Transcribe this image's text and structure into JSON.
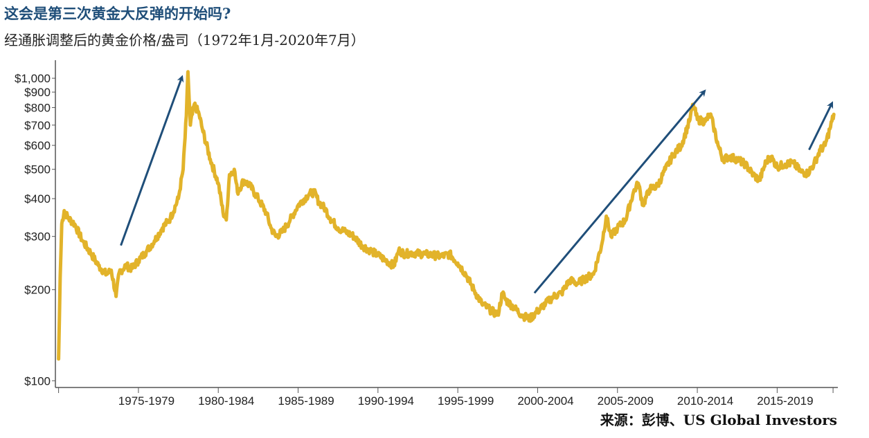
{
  "title": "这会是第三次黄金大反弹的开始吗?",
  "subtitle": "经通胀调整后的黄金价格/盎司（1972年1月-2020年7月）",
  "source": "来源：彭博、US Global Investors",
  "colors": {
    "line": "#e2b32a",
    "arrow": "#1f4e79",
    "axis": "#555555",
    "title": "#1f4e79"
  },
  "chart_data": {
    "type": "line",
    "title": "经通胀调整后的黄金价格/盎司（1972年1月-2020年7月）",
    "y_scale": "log",
    "ylim": [
      95,
      1100
    ],
    "xlim": [
      1971.8,
      2020.8
    ],
    "y_ticks": [
      {
        "value": 100,
        "label": "$100"
      },
      {
        "value": 200,
        "label": "$200"
      },
      {
        "value": 300,
        "label": "$300"
      },
      {
        "value": 400,
        "label": "$400"
      },
      {
        "value": 500,
        "label": "$500"
      },
      {
        "value": 600,
        "label": "$600"
      },
      {
        "value": 700,
        "label": "$700"
      },
      {
        "value": 800,
        "label": "$800"
      },
      {
        "value": 900,
        "label": "$900"
      },
      {
        "value": 1000,
        "label": "$1,000"
      }
    ],
    "x_ticks": [
      {
        "label": "1975-1979",
        "center": 1977.5
      },
      {
        "label": "1980-1984",
        "center": 1982.5
      },
      {
        "label": "1985-1989",
        "center": 1987.5
      },
      {
        "label": "1990-1994",
        "center": 1992.5
      },
      {
        "label": "1995-1999",
        "center": 1997.5
      },
      {
        "label": "2000-2004",
        "center": 2002.5
      },
      {
        "label": "2005-2009",
        "center": 2007.5
      },
      {
        "label": "2010-2014",
        "center": 2012.5
      },
      {
        "label": "2015-2019",
        "center": 2017.5
      }
    ],
    "x_tick_marks": [
      1972,
      1977,
      1982,
      1987,
      1992,
      1997,
      2002,
      2007,
      2012,
      2017,
      2020.5
    ],
    "series": [
      {
        "name": "经通胀调整后的黄金价格",
        "points": [
          [
            1972.0,
            118
          ],
          [
            1972.1,
            220
          ],
          [
            1972.2,
            330
          ],
          [
            1972.35,
            365
          ],
          [
            1972.6,
            345
          ],
          [
            1973.0,
            330
          ],
          [
            1973.5,
            290
          ],
          [
            1974.0,
            265
          ],
          [
            1974.5,
            240
          ],
          [
            1975.0,
            225
          ],
          [
            1975.3,
            232
          ],
          [
            1975.6,
            190
          ],
          [
            1975.8,
            228
          ],
          [
            1976.2,
            240
          ],
          [
            1976.6,
            235
          ],
          [
            1977.0,
            250
          ],
          [
            1977.5,
            268
          ],
          [
            1978.0,
            290
          ],
          [
            1978.5,
            320
          ],
          [
            1979.0,
            345
          ],
          [
            1979.5,
            400
          ],
          [
            1979.8,
            500
          ],
          [
            1980.0,
            750
          ],
          [
            1980.1,
            1050
          ],
          [
            1980.25,
            700
          ],
          [
            1980.5,
            820
          ],
          [
            1980.8,
            760
          ],
          [
            1981.0,
            680
          ],
          [
            1981.5,
            540
          ],
          [
            1982.0,
            450
          ],
          [
            1982.3,
            360
          ],
          [
            1982.5,
            340
          ],
          [
            1982.7,
            480
          ],
          [
            1983.0,
            500
          ],
          [
            1983.2,
            420
          ],
          [
            1983.6,
            460
          ],
          [
            1984.0,
            440
          ],
          [
            1984.5,
            400
          ],
          [
            1985.0,
            360
          ],
          [
            1985.3,
            320
          ],
          [
            1985.6,
            300
          ],
          [
            1986.0,
            310
          ],
          [
            1986.5,
            340
          ],
          [
            1987.0,
            380
          ],
          [
            1987.3,
            395
          ],
          [
            1987.7,
            415
          ],
          [
            1988.0,
            420
          ],
          [
            1988.3,
            390
          ],
          [
            1988.7,
            370
          ],
          [
            1989.0,
            345
          ],
          [
            1989.5,
            320
          ],
          [
            1990.0,
            310
          ],
          [
            1990.5,
            300
          ],
          [
            1991.0,
            280
          ],
          [
            1991.5,
            270
          ],
          [
            1992.0,
            260
          ],
          [
            1992.5,
            250
          ],
          [
            1993.0,
            240
          ],
          [
            1993.3,
            270
          ],
          [
            1993.7,
            262
          ],
          [
            1994.0,
            265
          ],
          [
            1995.0,
            262
          ],
          [
            1996.0,
            258
          ],
          [
            1996.5,
            262
          ],
          [
            1997.0,
            245
          ],
          [
            1997.5,
            225
          ],
          [
            1998.0,
            200
          ],
          [
            1998.5,
            180
          ],
          [
            1999.0,
            172
          ],
          [
            1999.5,
            165
          ],
          [
            1999.8,
            195
          ],
          [
            2000.0,
            185
          ],
          [
            2000.5,
            175
          ],
          [
            2001.0,
            165
          ],
          [
            2001.5,
            160
          ],
          [
            2002.0,
            170
          ],
          [
            2002.5,
            180
          ],
          [
            2003.0,
            190
          ],
          [
            2003.5,
            195
          ],
          [
            2004.0,
            215
          ],
          [
            2004.5,
            210
          ],
          [
            2005.0,
            218
          ],
          [
            2005.5,
            225
          ],
          [
            2006.0,
            280
          ],
          [
            2006.3,
            350
          ],
          [
            2006.6,
            300
          ],
          [
            2007.0,
            320
          ],
          [
            2007.5,
            340
          ],
          [
            2008.0,
            420
          ],
          [
            2008.3,
            450
          ],
          [
            2008.6,
            380
          ],
          [
            2009.0,
            430
          ],
          [
            2009.5,
            440
          ],
          [
            2010.0,
            500
          ],
          [
            2010.5,
            560
          ],
          [
            2011.0,
            600
          ],
          [
            2011.5,
            720
          ],
          [
            2011.75,
            820
          ],
          [
            2012.0,
            730
          ],
          [
            2012.5,
            720
          ],
          [
            2012.8,
            760
          ],
          [
            2013.0,
            700
          ],
          [
            2013.3,
            600
          ],
          [
            2013.6,
            540
          ],
          [
            2014.0,
            550
          ],
          [
            2014.5,
            540
          ],
          [
            2015.0,
            520
          ],
          [
            2015.5,
            480
          ],
          [
            2015.9,
            460
          ],
          [
            2016.3,
            530
          ],
          [
            2016.6,
            550
          ],
          [
            2017.0,
            510
          ],
          [
            2017.5,
            520
          ],
          [
            2018.0,
            525
          ],
          [
            2018.5,
            490
          ],
          [
            2018.9,
            485
          ],
          [
            2019.3,
            520
          ],
          [
            2019.7,
            580
          ],
          [
            2020.0,
            600
          ],
          [
            2020.3,
            680
          ],
          [
            2020.55,
            760
          ]
        ]
      }
    ],
    "annotations": [
      {
        "type": "arrow",
        "from": [
          1975.9,
          280
        ],
        "to": [
          1979.7,
          1000
        ]
      },
      {
        "type": "arrow",
        "from": [
          2001.8,
          195
        ],
        "to": [
          2012.4,
          900
        ]
      },
      {
        "type": "arrow",
        "from": [
          2019.0,
          580
        ],
        "to": [
          2020.4,
          820
        ]
      }
    ]
  }
}
